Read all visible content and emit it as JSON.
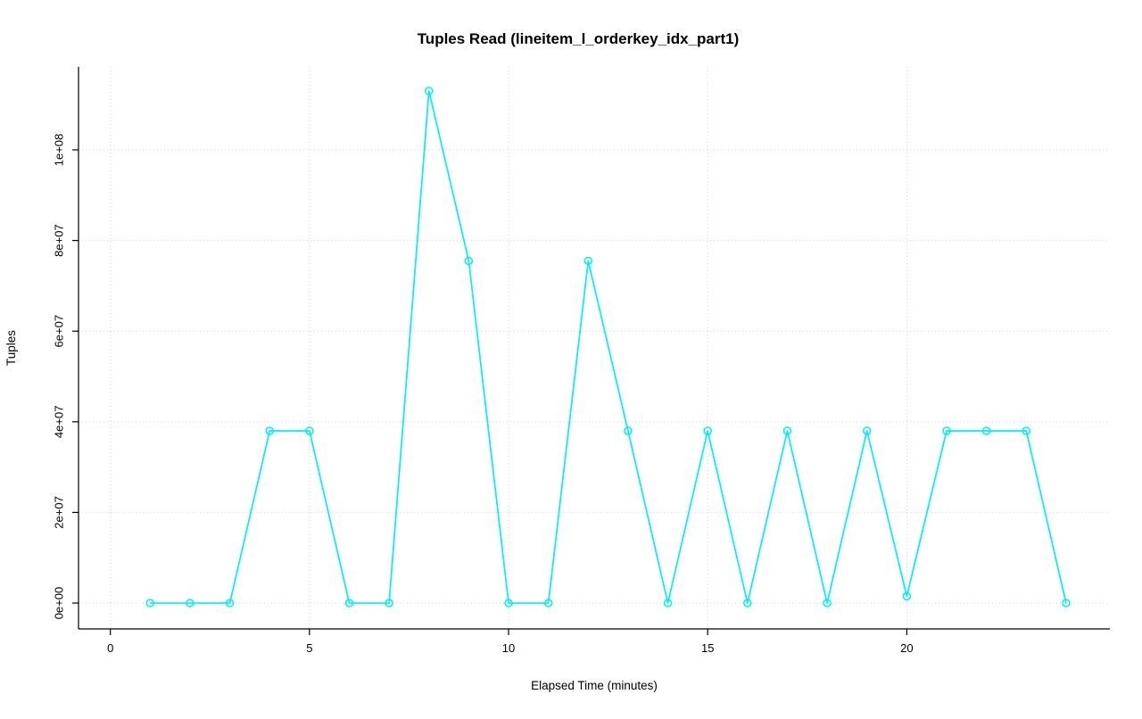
{
  "page": {
    "background": "#FFFFFF"
  },
  "chart_data": {
    "type": "line",
    "title": "Tuples Read (lineitem_l_orderkey_idx_part1)",
    "xlabel": "Elapsed Time (minutes)",
    "ylabel": "Tuples",
    "x": [
      1,
      2,
      3,
      4,
      5,
      6,
      7,
      8,
      9,
      10,
      11,
      12,
      13,
      14,
      15,
      16,
      17,
      18,
      19,
      20,
      21,
      22,
      23,
      24
    ],
    "y": [
      0,
      0,
      0,
      38000000,
      38000000,
      0,
      0,
      113000000,
      75500000,
      0,
      0,
      75500000,
      38000000,
      0,
      38000000,
      0,
      38000000,
      0,
      38000000,
      1500000,
      38000000,
      38000000,
      38000000,
      0
    ],
    "xticks": [
      0,
      5,
      10,
      15,
      20
    ],
    "xtick_labels": [
      "0",
      "5",
      "10",
      "15",
      "20"
    ],
    "yticks": [
      0,
      20000000,
      40000000,
      60000000,
      80000000,
      100000000
    ],
    "ytick_labels": [
      "0e+00",
      "2e+07",
      "4e+07",
      "6e+07",
      "8e+07",
      "1e+08"
    ],
    "xlim": [
      -0.8,
      25.1
    ],
    "ylim": [
      -5700000,
      118300000
    ],
    "grid": true,
    "grid_style": "dotted",
    "legend": "none",
    "marker": "open-circle",
    "line_color": "#00F0F0",
    "grid_color": "#D6D6D6",
    "axis_color": "#000000",
    "text_color": "#000000"
  }
}
